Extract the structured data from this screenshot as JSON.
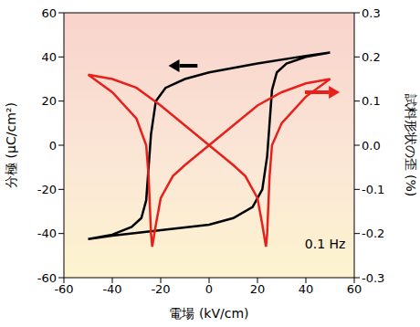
{
  "chart_data": {
    "type": "line",
    "xlabel": "電場 (kV/cm)",
    "ylabel": "分極 (μC/cm²)",
    "y2label": "試料形状の歪 (%)",
    "annotation": "0.1 Hz",
    "xlim": [
      -60,
      60
    ],
    "xticks": [
      -60,
      -40,
      -20,
      0,
      20,
      40,
      60
    ],
    "ylim": [
      -60,
      60
    ],
    "yticks": [
      -60,
      -40,
      -20,
      0,
      20,
      40,
      60
    ],
    "y2lim": [
      -0.3,
      0.3
    ],
    "y2ticks": [
      -0.3,
      -0.2,
      -0.1,
      {
        "value": 0,
        "label": "0.0"
      },
      0.1,
      0.2,
      0.3
    ],
    "series": [
      {
        "color": "#000000",
        "x": [
          50,
          40,
          20,
          0,
          -10,
          -18,
          -22,
          -24,
          -25,
          -26,
          -28,
          -32,
          -40,
          -50,
          -40,
          -20,
          0,
          10,
          18,
          22,
          24,
          25,
          26,
          28,
          32,
          40,
          50
        ],
        "values": [
          42,
          40.5,
          37,
          33,
          30,
          26,
          20,
          5,
          -10,
          -25,
          -33,
          -37,
          -40.5,
          -42.5,
          -41,
          -38.5,
          -36,
          -33,
          -28,
          -20,
          -5,
          10,
          25,
          33,
          37,
          40,
          42
        ]
      },
      {
        "color": "#e8201c",
        "axis": "y2",
        "x": [
          -50,
          -40,
          -30,
          -26,
          -25,
          -24,
          -23.5,
          -22,
          -20,
          -15,
          -10,
          0,
          10,
          20,
          30,
          40,
          50,
          40,
          30,
          26,
          25,
          24,
          23.5,
          22,
          20,
          15,
          10,
          0,
          -10,
          -20,
          -30,
          -40,
          -50
        ],
        "values": [
          0.16,
          0.12,
          0.06,
          0,
          -0.07,
          -0.2,
          -0.23,
          -0.18,
          -0.12,
          -0.07,
          -0.045,
          0,
          0.045,
          0.09,
          0.12,
          0.14,
          0.15,
          0.11,
          0.05,
          0,
          -0.07,
          -0.2,
          -0.23,
          -0.18,
          -0.12,
          -0.07,
          -0.045,
          0,
          0.045,
          0.09,
          0.13,
          0.15,
          0.16
        ]
      }
    ]
  }
}
